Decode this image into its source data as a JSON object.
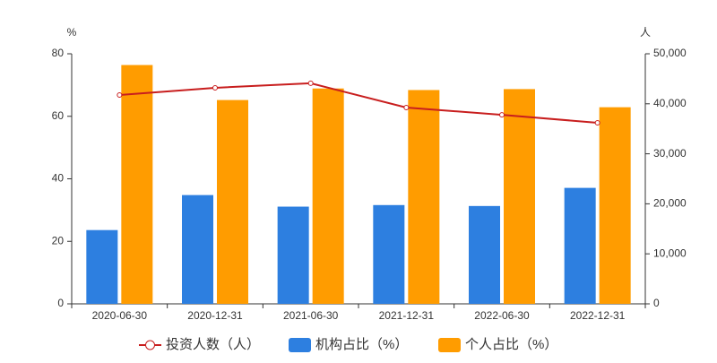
{
  "chart_data": {
    "type": "bar-line",
    "y_label": "%",
    "y2_label": "人",
    "categories": [
      "2020-06-30",
      "2020-12-31",
      "2021-06-30",
      "2021-12-31",
      "2022-06-30",
      "2022-12-31"
    ],
    "series": [
      {
        "name": "投资人数（人）",
        "type": "line",
        "axis": "y2",
        "color": "#c81e1e",
        "values": [
          41750,
          43200,
          44100,
          39250,
          37800,
          36200
        ]
      },
      {
        "name": "机构占比（%）",
        "type": "bar",
        "color": "#2d7fe0",
        "values": [
          23.6,
          34.8,
          31.1,
          31.6,
          31.3,
          37.1
        ]
      },
      {
        "name": "个人占比（%）",
        "type": "bar",
        "color": "#ff9c00",
        "values": [
          76.4,
          65.2,
          68.9,
          68.4,
          68.7,
          62.9
        ]
      }
    ],
    "ylim": [
      0,
      80
    ],
    "yticks": [
      0,
      20,
      40,
      60,
      80
    ],
    "y2lim": [
      0,
      50000
    ],
    "y2ticks": [
      0,
      {
        "value": 10000,
        "label": "10,000"
      },
      {
        "value": 20000,
        "label": "20,000"
      },
      {
        "value": 30000,
        "label": "30,000"
      },
      {
        "value": 40000,
        "label": "40,000"
      },
      {
        "value": 50000,
        "label": "50,000"
      }
    ]
  }
}
